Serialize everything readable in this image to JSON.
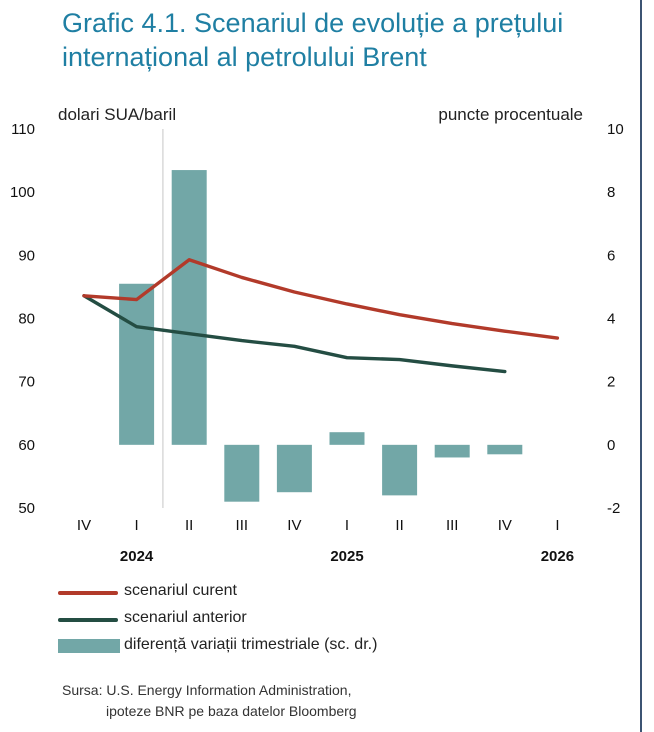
{
  "title_lines": [
    "Grafic 4.1. Scenariul de evoluție a prețului",
    "internațional al petrolului Brent"
  ],
  "chart_data": {
    "type": "bar+line",
    "title": "Grafic 4.1. Scenariul de evoluție a prețului internațional al petrolului Brent",
    "left_axis": {
      "label": "dolari SUA/baril",
      "min": 50,
      "max": 110,
      "ticks": [
        "110",
        "100",
        "90",
        "80",
        "70",
        "60",
        "50"
      ]
    },
    "right_axis": {
      "label": "puncte procentuale",
      "min": -2,
      "max": 10,
      "ticks": [
        "10",
        "8",
        "6",
        "4",
        "2",
        "0",
        "-2"
      ]
    },
    "categories": [
      "IV",
      "I",
      "II",
      "III",
      "IV",
      "I",
      "II",
      "III",
      "IV",
      "I"
    ],
    "years": [
      {
        "label": "2024",
        "category_index": 1
      },
      {
        "label": "2025",
        "category_index": 5
      },
      {
        "label": "2026",
        "category_index": 9
      }
    ],
    "divider_after_index": 1,
    "bars": {
      "name": "diferență variații trimestriale (sc. dr.)",
      "axis": "right",
      "color": "#72a7a7",
      "values": [
        null,
        5.1,
        8.7,
        -1.8,
        -1.5,
        0.4,
        -1.6,
        -0.4,
        -0.3,
        null
      ]
    },
    "series": [
      {
        "name": "scenariul curent",
        "axis": "left",
        "color": "#b23a2a",
        "values": [
          83.6,
          83.0,
          89.3,
          86.5,
          84.2,
          82.3,
          80.6,
          79.2,
          78.0,
          76.9
        ]
      },
      {
        "name": "scenariul anterior",
        "axis": "left",
        "color": "#244d43",
        "values": [
          83.6,
          78.7,
          77.6,
          76.5,
          75.6,
          73.8,
          73.5,
          72.5,
          71.6,
          null
        ]
      }
    ]
  },
  "legend": [
    {
      "label": "scenariul curent",
      "kind": "line",
      "color": "#b23a2a"
    },
    {
      "label": "scenariul anterior",
      "kind": "line",
      "color": "#244d43"
    },
    {
      "label": "diferență variații trimestriale (sc. dr.)",
      "kind": "bar",
      "color": "#72a7a7"
    }
  ],
  "source_lines": [
    "Sursa: U.S. Energy Information Administration,",
    "ipoteze BNR pe baza datelor Bloomberg"
  ]
}
